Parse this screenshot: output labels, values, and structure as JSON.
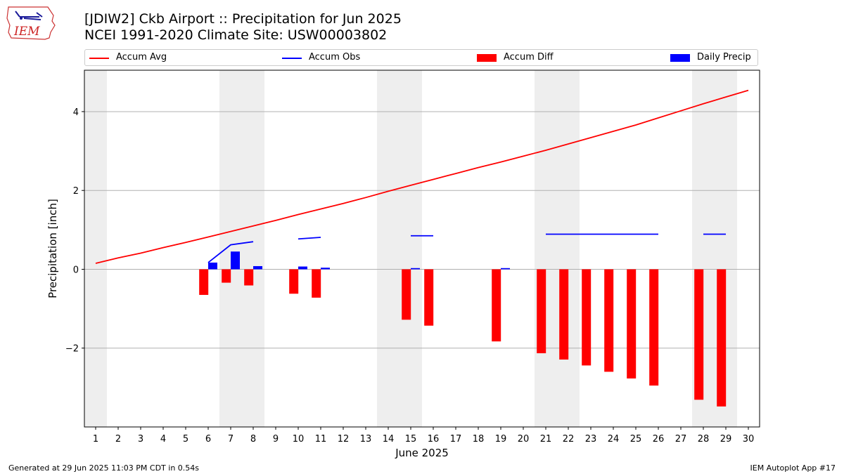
{
  "title": "[JDIW2] Ckb Airport :: Precipitation for Jun 2025",
  "subtitle": "NCEI 1991-2020 Climate Site: USW00003802",
  "logo_text": "IEM",
  "footer_left": "Generated at 29 Jun 2025 11:03 PM CDT in 0.54s",
  "footer_right": "IEM Autoplot App #17",
  "colors": {
    "avg": "#ff0000",
    "obs": "#0000ff",
    "diff": "#ff0000",
    "daily": "#0000ff",
    "weekend": "#eeeeee",
    "grid": "#b0b0b0"
  },
  "chart_data": {
    "type": "bar",
    "xlabel": "June 2025",
    "ylabel": "Precipitation [inch]",
    "xlim": [
      0.5,
      30.5
    ],
    "ylim": [
      -4,
      5.05
    ],
    "yticks": [
      -2,
      0,
      2,
      4
    ],
    "ytick_labels": [
      "−2",
      "0",
      "2",
      "4"
    ],
    "xticks": [
      1,
      2,
      3,
      4,
      5,
      6,
      7,
      8,
      9,
      10,
      11,
      12,
      13,
      14,
      15,
      16,
      17,
      18,
      19,
      20,
      21,
      22,
      23,
      24,
      25,
      26,
      27,
      28,
      29,
      30
    ],
    "weekend_bands": [
      [
        0.5,
        1.5
      ],
      [
        6.5,
        8.5
      ],
      [
        13.5,
        15.5
      ],
      [
        20.5,
        22.5
      ],
      [
        27.5,
        29.5
      ]
    ],
    "grid": "y",
    "legend_position": "top",
    "series": [
      {
        "name": "Accum Avg",
        "kind": "line",
        "x": [
          1,
          2,
          3,
          4,
          5,
          6,
          7,
          8,
          9,
          10,
          11,
          12,
          13,
          14,
          15,
          16,
          17,
          18,
          19,
          20,
          21,
          22,
          23,
          24,
          25,
          26,
          27,
          28,
          29,
          30
        ],
        "values": [
          0.15,
          0.29,
          0.41,
          0.55,
          0.68,
          0.82,
          0.96,
          1.1,
          1.24,
          1.39,
          1.53,
          1.67,
          1.82,
          1.98,
          2.13,
          2.28,
          2.43,
          2.58,
          2.72,
          2.87,
          3.02,
          3.18,
          3.34,
          3.5,
          3.66,
          3.84,
          4.02,
          4.2,
          4.37,
          4.54
        ]
      },
      {
        "name": "Accum Obs",
        "kind": "line",
        "segments": [
          {
            "x": [
              6,
              7,
              8
            ],
            "values": [
              0.17,
              0.62,
              0.7
            ]
          },
          {
            "x": [
              10,
              11
            ],
            "values": [
              0.77,
              0.81
            ]
          },
          {
            "x": [
              15,
              16
            ],
            "values": [
              0.85,
              0.85
            ]
          },
          {
            "x": [
              21,
              22,
              23,
              24,
              25,
              26
            ],
            "values": [
              0.89,
              0.89,
              0.89,
              0.89,
              0.89,
              0.89
            ]
          },
          {
            "x": [
              28,
              29
            ],
            "values": [
              0.89,
              0.89
            ]
          }
        ]
      },
      {
        "name": "Accum Diff",
        "kind": "bar",
        "x": [
          6,
          7,
          8,
          10,
          11,
          15,
          16,
          19,
          21,
          22,
          23,
          24,
          25,
          26,
          28,
          29
        ],
        "values": [
          -0.65,
          -0.34,
          -0.41,
          -0.62,
          -0.72,
          -1.28,
          -1.43,
          -1.83,
          -2.13,
          -2.29,
          -2.44,
          -2.6,
          -2.77,
          -2.95,
          -3.31,
          -3.48
        ]
      },
      {
        "name": "Daily Precip",
        "kind": "bar",
        "x": [
          6,
          7,
          8,
          10,
          11,
          15,
          19
        ],
        "values": [
          0.17,
          0.45,
          0.08,
          0.07,
          0.04,
          0.03,
          0.03
        ]
      }
    ]
  }
}
